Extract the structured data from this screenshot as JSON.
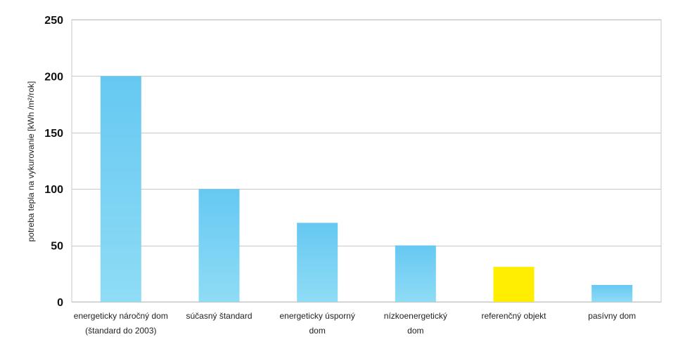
{
  "chart_data": {
    "type": "bar",
    "title": "",
    "xlabel": "",
    "ylabel": "potreba tepla na vykurovanie [kWh /m²/rok]",
    "ylim": [
      0,
      250
    ],
    "yticks": [
      0,
      50,
      100,
      150,
      200,
      250
    ],
    "grid": true,
    "categories": [
      [
        "energeticky náročný dom",
        "(štandard do 2003)"
      ],
      [
        "súčasný štandard"
      ],
      [
        "energeticky úsporný",
        "dom"
      ],
      [
        "nízkoenergetický",
        "dom"
      ],
      [
        "referenčný objekt"
      ],
      [
        "pasívny dom"
      ]
    ],
    "values": [
      200,
      100,
      70,
      50,
      31,
      15
    ],
    "bar_colors": [
      "#6cccf2",
      "#6cccf2",
      "#6cccf2",
      "#6cccf2",
      "#ffee00",
      "#6cccf2"
    ],
    "label_colors": [
      "#222222",
      "#222222",
      "#222222",
      "#222222",
      "#e02020",
      "#222222"
    ],
    "colors": {
      "bar_top": "#66c8f2",
      "bar_bottom": "#8fdcf5",
      "highlight": "#ffee00",
      "highlight_label": "#e02020",
      "grid": "#c8c8c8"
    }
  }
}
